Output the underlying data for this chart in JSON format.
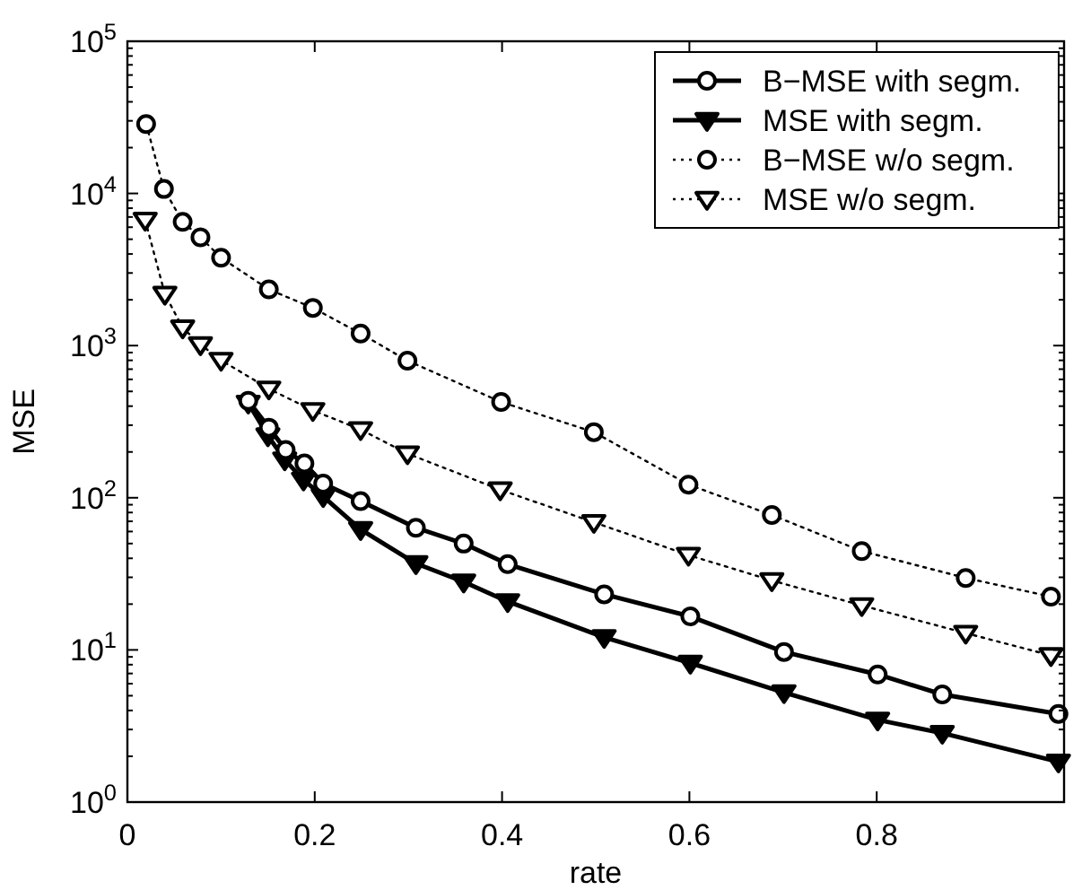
{
  "chart_data": {
    "type": "line",
    "xlabel": "rate",
    "ylabel": "MSE",
    "log": "y",
    "xlim": [
      0,
      1
    ],
    "xticks": [
      0,
      0.2,
      0.4,
      0.6,
      0.8
    ],
    "ylim": [
      1,
      100000
    ],
    "yticks": [
      {
        "value": 1,
        "label": "10$^{0}$"
      },
      {
        "value": 10,
        "label": "10$^{1}$"
      },
      {
        "value": 100,
        "label": "10$^{2}$"
      },
      {
        "value": 1000,
        "label": "10$^{3}$"
      },
      {
        "value": 10000,
        "label": "10$^{4}$"
      },
      {
        "value": 100000,
        "label": "10$^{5}$"
      }
    ],
    "grid": false,
    "legend": "top right",
    "series": [
      {
        "name": "B−MSE with segm.",
        "color": "#000000",
        "marker": "circle",
        "line_style": "solid",
        "x": [
          0.129,
          0.151,
          0.169,
          0.189,
          0.209,
          0.249,
          0.308,
          0.359,
          0.406,
          0.509,
          0.601,
          0.701,
          0.801,
          0.87,
          0.994
        ],
        "values": [
          434,
          289,
          206,
          168,
          124,
          95,
          63.5,
          50,
          36.6,
          23.2,
          16.6,
          9.7,
          6.9,
          5.1,
          3.8
        ]
      },
      {
        "name": "MSE with segm.",
        "color": "#000000",
        "marker": "triangle",
        "line_style": "solid",
        "x": [
          0.129,
          0.15,
          0.168,
          0.188,
          0.209,
          0.249,
          0.308,
          0.359,
          0.406,
          0.509,
          0.601,
          0.701,
          0.801,
          0.87,
          0.994
        ],
        "values": [
          420,
          256,
          178,
          131,
          102,
          62,
          37,
          28,
          20.8,
          12.1,
          8.2,
          5.25,
          3.47,
          2.84,
          1.84
        ]
      },
      {
        "name": "B−MSE w/o segm.",
        "color": "#000000",
        "marker": "circle",
        "line_style": "dotted",
        "x": [
          0.02,
          0.039,
          0.059,
          0.078,
          0.1,
          0.151,
          0.198,
          0.249,
          0.299,
          0.399,
          0.498,
          0.599,
          0.688,
          0.784,
          0.895,
          0.986
        ],
        "values": [
          28600,
          10700,
          6500,
          5150,
          3780,
          2340,
          1770,
          1200,
          796,
          426,
          270,
          122,
          77,
          44.6,
          29.7,
          22.4
        ]
      },
      {
        "name": "MSE w/o segm.",
        "color": "#000000",
        "marker": "triangle",
        "line_style": "dotted",
        "x": [
          0.019,
          0.04,
          0.059,
          0.078,
          0.1,
          0.151,
          0.198,
          0.249,
          0.299,
          0.398,
          0.498,
          0.599,
          0.688,
          0.784,
          0.895,
          0.986
        ],
        "values": [
          6680,
          2180,
          1310,
          1016,
          802,
          520,
          375,
          281,
          195,
          113,
          69,
          42,
          28.6,
          19.6,
          12.9,
          9.2
        ]
      }
    ]
  }
}
